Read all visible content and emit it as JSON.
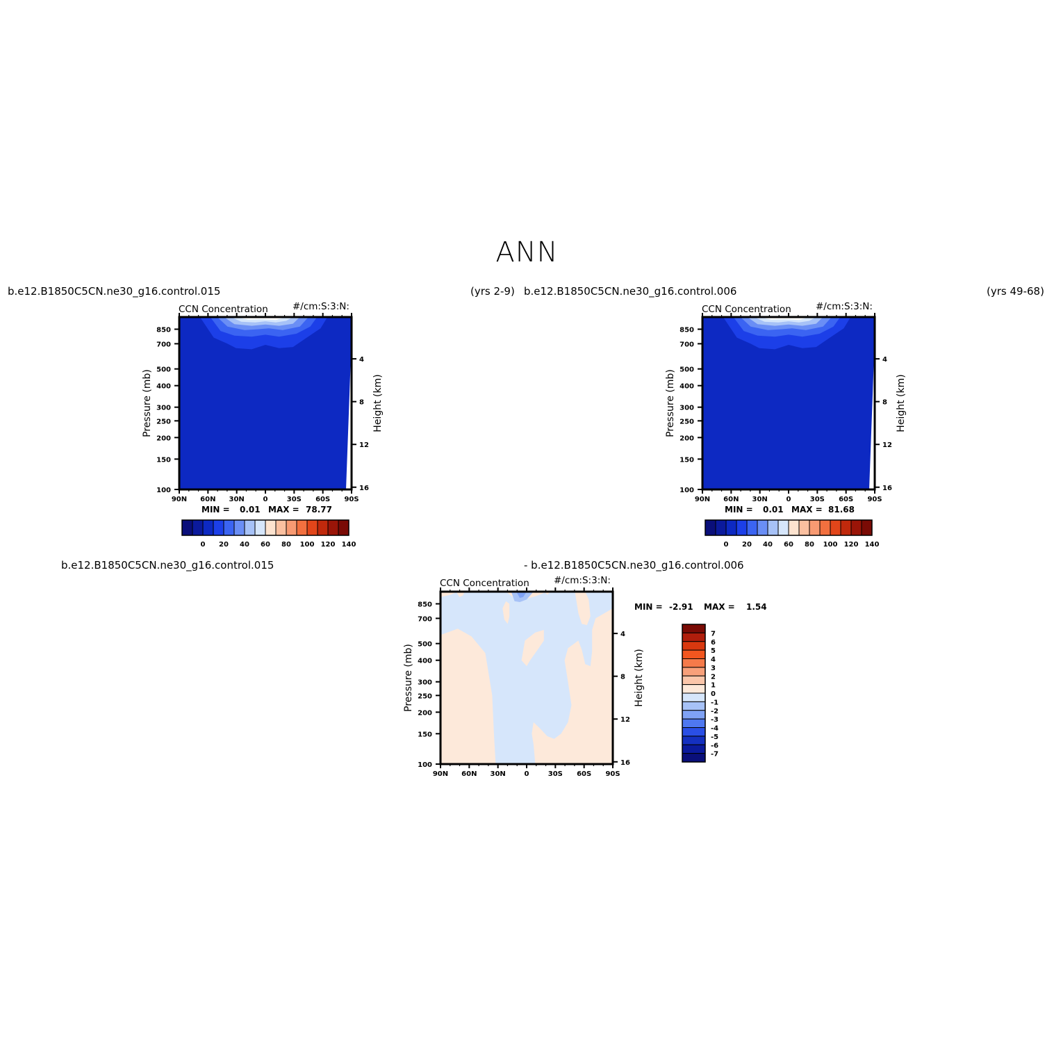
{
  "figure": {
    "title": "ANN"
  },
  "panels": [
    {
      "caption_left": "b.e12.B1850C5CN.ne30_g16.control.015",
      "caption_right": "(yrs 2-9)",
      "variable": "CCN Concentration",
      "units": "#/cm:S:3:N:",
      "stats": {
        "min_label": "MIN =",
        "min": "0.01",
        "max_label": "MAX =",
        "max": "78.77"
      }
    },
    {
      "caption_left": "b.e12.B1850C5CN.ne30_g16.control.006",
      "caption_right": "(yrs 49-68)",
      "variable": "CCN Concentration",
      "units": "#/cm:S:3:N:",
      "stats": {
        "min_label": "MIN =",
        "min": "0.01",
        "max_label": "MAX =",
        "max": "81.68"
      }
    },
    {
      "caption_left": "b.e12.B1850C5CN.ne30_g16.control.015",
      "caption_right": "- b.e12.B1850C5CN.ne30_g16.control.006",
      "variable": "CCN Concentration",
      "units": "#/cm:S:3:N:",
      "stats": {
        "min_label": "MIN =",
        "min": "-2.91",
        "max_label": "MAX =",
        "max": "1.54"
      }
    }
  ],
  "chart_data": [
    {
      "type": "heatmap",
      "title": "CCN Concentration",
      "xlabel": "",
      "ylabel": "Pressure (mb)",
      "ylabel_right": "Height (km)",
      "x_ticks": [
        "90N",
        "60N",
        "30N",
        "0",
        "30S",
        "60S",
        "90S"
      ],
      "y_ticks": [
        100,
        150,
        200,
        250,
        300,
        400,
        500,
        700,
        850
      ],
      "y_right_ticks": [
        4,
        8,
        12,
        16
      ],
      "y_scale": "log",
      "ylim": [
        1000,
        100
      ],
      "colorbar_levels": [
        0,
        10,
        20,
        30,
        40,
        50,
        60,
        70,
        80,
        90,
        100,
        110,
        120,
        130,
        140
      ],
      "colorbar_labels": [
        "0",
        "20",
        "40",
        "60",
        "80",
        "100",
        "120",
        "140"
      ],
      "colorbar_colors": [
        "#0a0f7a",
        "#0b1a9c",
        "#0d29c2",
        "#1c3fe8",
        "#3b64f2",
        "#6a8ef5",
        "#a7c2f7",
        "#d6e6fb",
        "#fde3cf",
        "#fbc0a0",
        "#f89a72",
        "#f2703f",
        "#e2461a",
        "#c0290c",
        "#9a1508",
        "#7a0b05"
      ],
      "min": 0.01,
      "max": 78.77
    },
    {
      "type": "heatmap",
      "title": "CCN Concentration",
      "xlabel": "",
      "ylabel": "Pressure (mb)",
      "ylabel_right": "Height (km)",
      "x_ticks": [
        "90N",
        "60N",
        "30N",
        "0",
        "30S",
        "60S",
        "90S"
      ],
      "y_ticks": [
        100,
        150,
        200,
        250,
        300,
        400,
        500,
        700,
        850
      ],
      "y_right_ticks": [
        4,
        8,
        12,
        16
      ],
      "y_scale": "log",
      "ylim": [
        1000,
        100
      ],
      "colorbar_levels": [
        0,
        10,
        20,
        30,
        40,
        50,
        60,
        70,
        80,
        90,
        100,
        110,
        120,
        130,
        140
      ],
      "colorbar_labels": [
        "0",
        "20",
        "40",
        "60",
        "80",
        "100",
        "120",
        "140"
      ],
      "colorbar_colors": [
        "#0a0f7a",
        "#0b1a9c",
        "#0d29c2",
        "#1c3fe8",
        "#3b64f2",
        "#6a8ef5",
        "#a7c2f7",
        "#d6e6fb",
        "#fde3cf",
        "#fbc0a0",
        "#f89a72",
        "#f2703f",
        "#e2461a",
        "#c0290c",
        "#9a1508",
        "#7a0b05"
      ],
      "min": 0.01,
      "max": 81.68
    },
    {
      "type": "heatmap",
      "title": "CCN Concentration",
      "xlabel": "",
      "ylabel": "Pressure (mb)",
      "ylabel_right": "Height (km)",
      "x_ticks": [
        "90N",
        "60N",
        "30N",
        "0",
        "30S",
        "60S",
        "90S"
      ],
      "y_ticks": [
        100,
        150,
        200,
        250,
        300,
        400,
        500,
        700,
        850
      ],
      "y_right_ticks": [
        4,
        8,
        12,
        16
      ],
      "y_scale": "log",
      "ylim": [
        1000,
        100
      ],
      "colorbar_orientation": "vertical",
      "colorbar_labels": [
        "7",
        "6",
        "5",
        "4",
        "3",
        "2",
        "1",
        "0",
        "-1",
        "-2",
        "-3",
        "-4",
        "-5",
        "-6",
        "-7"
      ],
      "colorbar_colors": [
        "#7a0b05",
        "#b01e0c",
        "#d9380f",
        "#f2561f",
        "#f57a4a",
        "#f8a07a",
        "#fbc6aa",
        "#fde9da",
        "#d6e6fb",
        "#a7c2f7",
        "#7fa2f5",
        "#4f78f0",
        "#2a4fe6",
        "#1430c0",
        "#0b1a9c",
        "#0a0f7a"
      ],
      "min": -2.91,
      "max": 1.54
    }
  ]
}
